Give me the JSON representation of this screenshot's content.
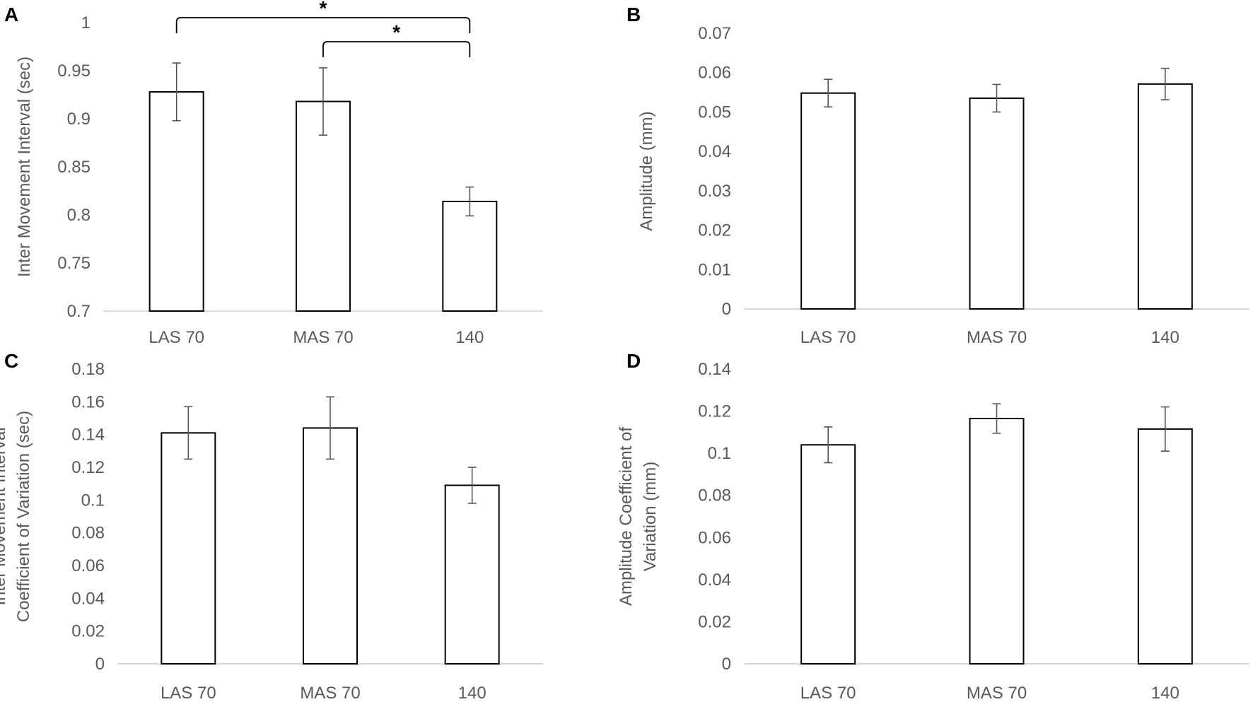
{
  "colors": {
    "bar_fill": "#ffffff",
    "bar_stroke": "#000000",
    "error_bar": "#555555",
    "axis_line": "#d9d9d9",
    "text": "#595959",
    "panel_letter": "#000000"
  },
  "chart_data": [
    {
      "panel": "A",
      "type": "bar",
      "categories": [
        "LAS 70",
        "MAS 70",
        "140"
      ],
      "values": [
        0.928,
        0.918,
        0.814
      ],
      "error": [
        0.03,
        0.035,
        0.015
      ],
      "ylabel_lines": [
        "Inter Movement Interval (sec)"
      ],
      "ylim": [
        0.7,
        1.0
      ],
      "yticks": [
        0.7,
        0.75,
        0.8,
        0.85,
        0.9,
        0.95,
        1
      ],
      "ytick_labels": [
        "0.7",
        "0.75",
        "0.8",
        "0.85",
        "0.9",
        "0.95",
        "1"
      ],
      "significance": [
        {
          "from": 0,
          "to": 2,
          "label": "*"
        },
        {
          "from": 1,
          "to": 2,
          "label": "*"
        }
      ]
    },
    {
      "panel": "B",
      "type": "bar",
      "categories": [
        "LAS 70",
        "MAS 70",
        "140"
      ],
      "values": [
        0.0548,
        0.0535,
        0.0571
      ],
      "error": [
        0.0035,
        0.0035,
        0.004
      ],
      "ylabel_lines": [
        "Amplitude (mm)"
      ],
      "ylim": [
        0,
        0.07
      ],
      "yticks": [
        0,
        0.01,
        0.02,
        0.03,
        0.04,
        0.05,
        0.06,
        0.07
      ],
      "ytick_labels": [
        "0",
        "0.01",
        "0.02",
        "0.03",
        "0.04",
        "0.05",
        "0.06",
        "0.07"
      ],
      "significance": []
    },
    {
      "panel": "C",
      "type": "bar",
      "categories": [
        "LAS 70",
        "MAS 70",
        "140"
      ],
      "values": [
        0.141,
        0.144,
        0.109
      ],
      "error": [
        0.016,
        0.019,
        0.011
      ],
      "ylabel_lines": [
        "Inter Movement Interval",
        "Coefficient of Variation (sec)"
      ],
      "ylim": [
        0,
        0.18
      ],
      "yticks": [
        0,
        0.02,
        0.04,
        0.06,
        0.08,
        0.1,
        0.12,
        0.14,
        0.16,
        0.18
      ],
      "ytick_labels": [
        "0",
        "0.02",
        "0.04",
        "0.06",
        "0.08",
        "0.1",
        "0.12",
        "0.14",
        "0.16",
        "0.18"
      ],
      "significance": []
    },
    {
      "panel": "D",
      "type": "bar",
      "categories": [
        "LAS 70",
        "MAS 70",
        "140"
      ],
      "values": [
        0.104,
        0.1165,
        0.1115
      ],
      "error": [
        0.0085,
        0.007,
        0.0105
      ],
      "ylabel_lines": [
        "Amplitude Coefficient of",
        "Variation (mm)"
      ],
      "ylim": [
        0,
        0.14
      ],
      "yticks": [
        0,
        0.02,
        0.04,
        0.06,
        0.08,
        0.1,
        0.12,
        0.14
      ],
      "ytick_labels": [
        "0",
        "0.02",
        "0.04",
        "0.06",
        "0.08",
        "0.1",
        "0.12",
        "0.14"
      ],
      "significance": []
    }
  ]
}
